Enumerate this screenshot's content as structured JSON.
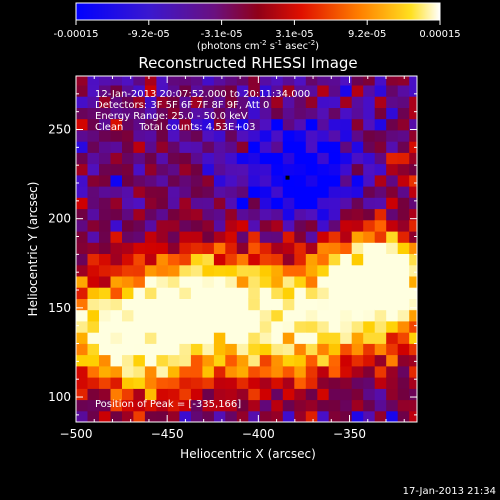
{
  "colorbar": {
    "ticks": [
      "-0.00015",
      "-9.2e-05",
      "-3.1e-05",
      "3.1e-05",
      "9.2e-05",
      "0.00015"
    ],
    "unit_main": "(photons cm",
    "unit_exp1": "-2",
    "unit_mid": " s",
    "unit_exp2": "-1",
    "unit_tail": " asec",
    "unit_exp3": "-2",
    "unit_close": ")"
  },
  "chart_data": {
    "type": "heatmap",
    "title": "Reconstructed RHESSI Image",
    "xlabel": "Heliocentric X (arcsec)",
    "ylabel": "Heliocentric Y (arcsec)",
    "xlim": [
      -500,
      -313
    ],
    "ylim": [
      86,
      280
    ],
    "x_ticks": [
      -500,
      -450,
      -400,
      -350
    ],
    "y_ticks": [
      100,
      150,
      200,
      250
    ],
    "color_range": [
      -0.00015,
      0.00015
    ],
    "colormap": [
      "#0000ff",
      "#5010c0",
      "#700040",
      "#d00000",
      "#ff6000",
      "#ffd000",
      "#ffffe0"
    ],
    "annotations": [
      "12-Jan-2013 20:07:52.000 to 20:11:34.000",
      "Detectors: 3F 5F 6F 7F 8F 9F, Att 0",
      "Energy Range: 25.0 - 50.0 keV",
      "Clean     Total counts: 4.53E+03",
      "Position of Peak = [-335,166]"
    ],
    "peak": [
      -335,
      166
    ]
  },
  "timestamp": "17-Jan-2013 21:34"
}
